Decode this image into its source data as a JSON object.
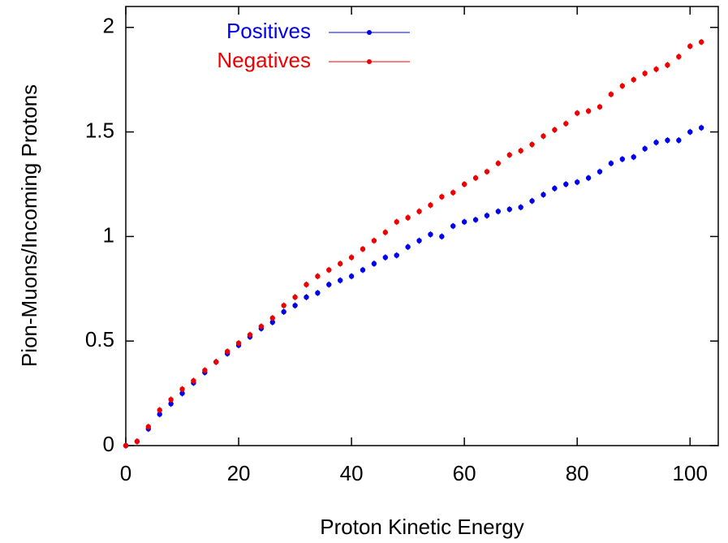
{
  "chart_data": {
    "type": "scatter",
    "xlabel": "Proton Kinetic Energy",
    "ylabel": "Pion-Muons/Incoming Protons",
    "x": [
      0,
      2,
      4,
      6,
      8,
      10,
      12,
      14,
      16,
      18,
      20,
      22,
      24,
      26,
      28,
      30,
      32,
      34,
      36,
      38,
      40,
      42,
      44,
      46,
      48,
      50,
      52,
      54,
      56,
      58,
      60,
      62,
      64,
      66,
      68,
      70,
      72,
      74,
      76,
      78,
      80,
      82,
      84,
      86,
      88,
      90,
      92,
      94,
      96,
      98,
      100,
      102
    ],
    "series": [
      {
        "name": "Positives",
        "color": "#0000ee",
        "error": 0.015,
        "values": [
          0,
          0.02,
          0.08,
          0.15,
          0.2,
          0.25,
          0.3,
          0.35,
          0.4,
          0.44,
          0.48,
          0.52,
          0.56,
          0.59,
          0.64,
          0.67,
          0.71,
          0.73,
          0.77,
          0.79,
          0.81,
          0.84,
          0.87,
          0.9,
          0.91,
          0.95,
          0.98,
          1.01,
          1.0,
          1.05,
          1.07,
          1.08,
          1.1,
          1.12,
          1.13,
          1.14,
          1.17,
          1.2,
          1.23,
          1.25,
          1.26,
          1.28,
          1.31,
          1.35,
          1.37,
          1.38,
          1.42,
          1.45,
          1.46,
          1.46,
          1.5,
          1.52
        ]
      },
      {
        "name": "Negatives",
        "color": "#ee0000",
        "error": 0.015,
        "values": [
          0,
          0.02,
          0.09,
          0.17,
          0.22,
          0.27,
          0.31,
          0.36,
          0.4,
          0.45,
          0.49,
          0.53,
          0.57,
          0.61,
          0.67,
          0.71,
          0.77,
          0.81,
          0.84,
          0.87,
          0.9,
          0.94,
          0.98,
          1.02,
          1.07,
          1.09,
          1.12,
          1.15,
          1.19,
          1.21,
          1.25,
          1.28,
          1.31,
          1.35,
          1.39,
          1.41,
          1.44,
          1.48,
          1.51,
          1.54,
          1.59,
          1.6,
          1.62,
          1.68,
          1.72,
          1.75,
          1.78,
          1.8,
          1.82,
          1.86,
          1.91,
          1.93
        ]
      }
    ],
    "xlim": [
      0,
      105
    ],
    "xticks": [
      0,
      20,
      40,
      60,
      80,
      100
    ],
    "ylim": [
      0,
      2.1
    ],
    "yticks": [
      0,
      0.5,
      1,
      1.5,
      2
    ],
    "legend": "upper-left",
    "grid": false
  }
}
